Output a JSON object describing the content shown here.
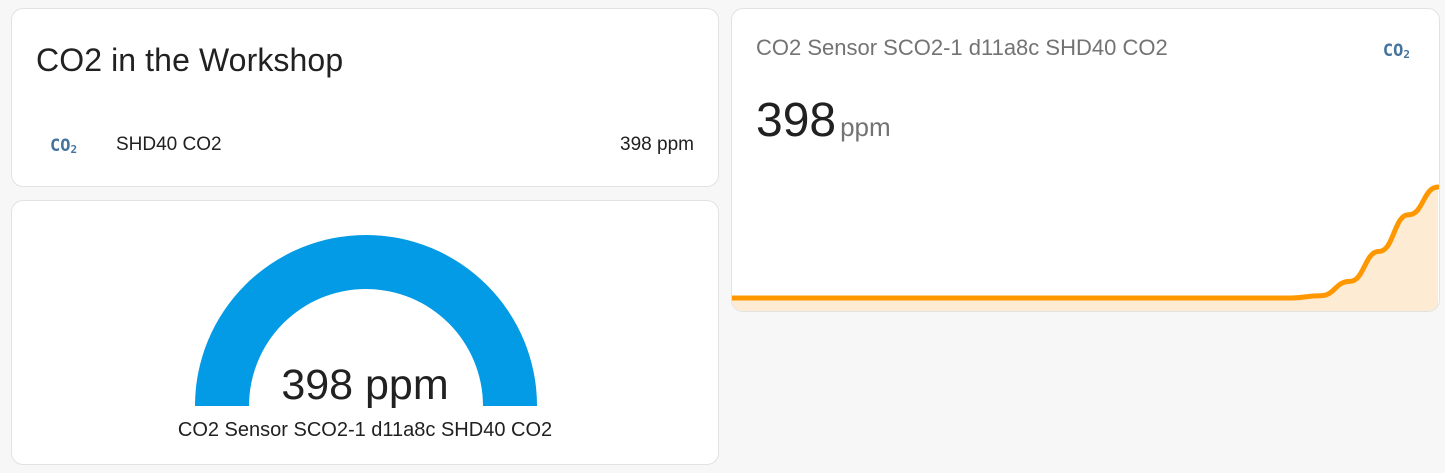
{
  "entities_card": {
    "title": "CO2 in the Workshop",
    "rows": [
      {
        "icon": "co2-icon",
        "icon_text": "CO",
        "icon_sub": "2",
        "label": "SHD40 CO2",
        "value": "398 ppm"
      }
    ]
  },
  "gauge_card": {
    "value_text": "398 ppm",
    "name": "CO2 Sensor SCO2-1 d11a8c SHD40 CO2",
    "value": 398,
    "fill_fraction": 1.0,
    "color": "#039be5"
  },
  "sensor_card": {
    "name": "CO2 Sensor SCO2-1 d11a8c SHD40 CO2",
    "icon": "co2-icon",
    "icon_text": "CO",
    "icon_sub": "2",
    "value": "398",
    "unit": "ppm",
    "line_color": "#ff9800",
    "fill_color": "#fdebd3",
    "chart_data": {
      "type": "area",
      "values": [
        0,
        0,
        0,
        0,
        0,
        0,
        0,
        0,
        0,
        0,
        0,
        0,
        0,
        0,
        0,
        0,
        0,
        0,
        0,
        0,
        0.02,
        0.15,
        0.42,
        0.75,
        1.0
      ]
    }
  }
}
